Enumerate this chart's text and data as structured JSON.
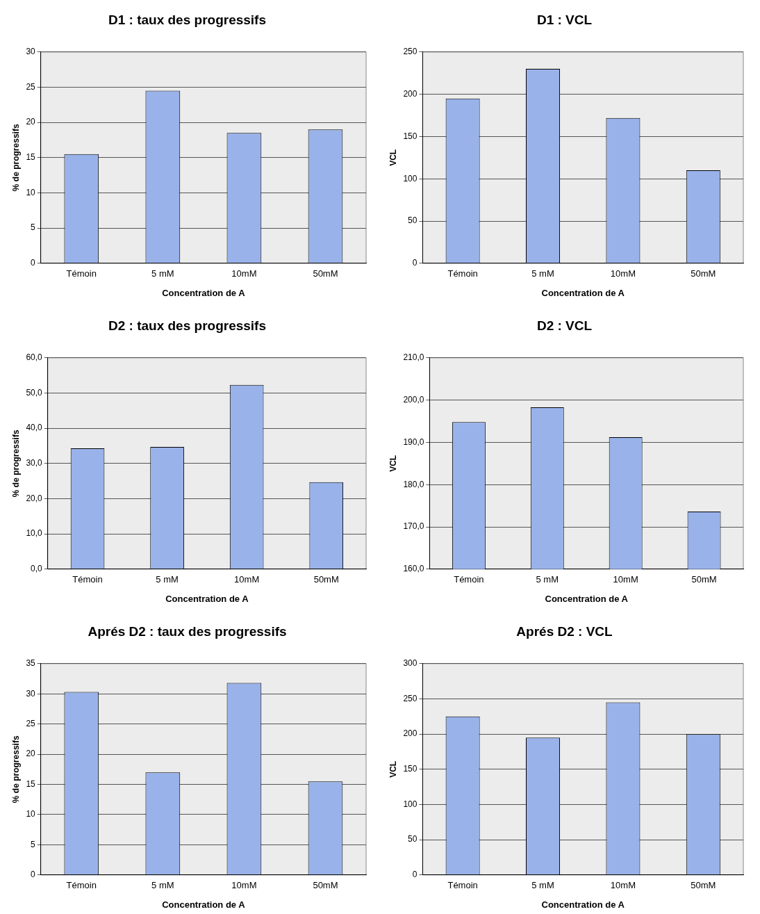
{
  "chart_data": [
    {
      "type": "bar",
      "title": "D1 : taux des progressifs",
      "xlabel": "Concentration de A",
      "ylabel": "% de progressifs",
      "categories": [
        "Témoin",
        "5 mM",
        "10mM",
        "50mM"
      ],
      "values": [
        15.5,
        24.5,
        18.5,
        19
      ],
      "color": "#99b3ea",
      "ylim": [
        0,
        30
      ],
      "yticks": [
        0,
        5,
        10,
        15,
        20,
        25,
        30
      ],
      "grid": "y"
    },
    {
      "type": "bar",
      "title": "D1 : VCL",
      "xlabel": "Concentration de A",
      "ylabel": "VCL",
      "categories": [
        "Témoin",
        "5 mM",
        "10mM",
        "50mM"
      ],
      "values": [
        195,
        230,
        172,
        110
      ],
      "color": "#99b3ea",
      "ylim": [
        0,
        250
      ],
      "yticks": [
        0,
        50,
        100,
        150,
        200,
        250
      ],
      "grid": "y"
    },
    {
      "type": "bar",
      "title": "D2 : taux des progressifs",
      "xlabel": "Concentration de A",
      "ylabel": "% de progressifs",
      "categories": [
        "Témoin",
        "5 mM",
        "10mM",
        "50mM"
      ],
      "values": [
        34.3,
        34.7,
        52.3,
        24.7
      ],
      "color": "#99b3ea",
      "ylim": [
        0,
        60
      ],
      "yticks": [
        {
          "value": 0,
          "label": "0,0"
        },
        {
          "value": 10,
          "label": "10,0"
        },
        {
          "value": 20,
          "label": "20,0"
        },
        {
          "value": 30,
          "label": "30,0"
        },
        {
          "value": 40,
          "label": "40,0"
        },
        {
          "value": 50,
          "label": "50,0"
        },
        {
          "value": 60,
          "label": "60,0"
        }
      ],
      "grid": "y"
    },
    {
      "type": "bar",
      "title": "D2 : VCL",
      "xlabel": "Concentration de A",
      "ylabel": "VCL",
      "categories": [
        "Témoin",
        "5 mM",
        "10mM",
        "50mM"
      ],
      "values": [
        194.8,
        198.3,
        191.2,
        173.6
      ],
      "color": "#99b3ea",
      "ylim": [
        160,
        210
      ],
      "yticks": [
        {
          "value": 160,
          "label": "160,0"
        },
        {
          "value": 170,
          "label": "170,0"
        },
        {
          "value": 180,
          "label": "180,0"
        },
        {
          "value": 190,
          "label": "190,0"
        },
        {
          "value": 200,
          "label": "200,0"
        },
        {
          "value": 210,
          "label": "210,0"
        }
      ],
      "grid": "y"
    },
    {
      "type": "bar",
      "title": "Aprés D2 : taux des progressifs",
      "xlabel": "Concentration de A",
      "ylabel": "% de progressifs",
      "categories": [
        "Témoin",
        "5 mM",
        "10mM",
        "50mM"
      ],
      "values": [
        30.3,
        17,
        31.8,
        15.5
      ],
      "color": "#99b3ea",
      "ylim": [
        0,
        35
      ],
      "yticks": [
        0,
        5,
        10,
        15,
        20,
        25,
        30,
        35
      ],
      "grid": "y"
    },
    {
      "type": "bar",
      "title": "Aprés D2 : VCL",
      "xlabel": "Concentration de A",
      "ylabel": "VCL",
      "categories": [
        "Témoin",
        "5 mM",
        "10mM",
        "50mM"
      ],
      "values": [
        225,
        195,
        245,
        200
      ],
      "color": "#99b3ea",
      "ylim": [
        0,
        300
      ],
      "yticks": [
        0,
        50,
        100,
        150,
        200,
        250,
        300
      ],
      "grid": "y"
    }
  ]
}
